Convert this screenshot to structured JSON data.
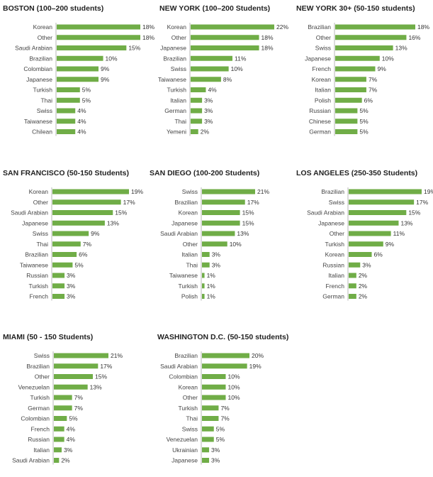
{
  "colors": {
    "bar": "#70ad47",
    "axis": "#a6a6a6",
    "text": "#444444"
  },
  "chart_data": [
    {
      "type": "bar",
      "orientation": "horizontal",
      "title": "BOSTON (100–200 students)",
      "categories": [
        "Korean",
        "Other",
        "Saudi Arabian",
        "Brazilian",
        "Colombian",
        "Japanese",
        "Turkish",
        "Thai",
        "Swiss",
        "Taiwanese",
        "Chilean"
      ],
      "values": [
        18,
        18,
        15,
        10,
        9,
        9,
        5,
        5,
        4,
        4,
        4
      ],
      "value_labels": [
        "18%",
        "18%",
        "15%",
        "10%",
        "9%",
        "9%",
        "5%",
        "5%",
        "4%",
        "4%",
        "4%"
      ],
      "xlim": [
        0,
        18
      ]
    },
    {
      "type": "bar",
      "orientation": "horizontal",
      "title": "NEW YORK (100–200 Students)",
      "categories": [
        "Korean",
        "Other",
        "Japanese",
        "Brazilian",
        "Swiss",
        "Taiwanese",
        "Turkish",
        "Italian",
        "German",
        "Thai",
        "Yemeni"
      ],
      "values": [
        22,
        18,
        18,
        11,
        10,
        8,
        4,
        3,
        3,
        3,
        2
      ],
      "value_labels": [
        "22%",
        "18%",
        "18%",
        "11%",
        "10%",
        "8%",
        "4%",
        "3%",
        "3%",
        "3%",
        "2%"
      ],
      "xlim": [
        0,
        22
      ]
    },
    {
      "type": "bar",
      "orientation": "horizontal",
      "title": "NEW YORK 30+ (50-150 students)",
      "categories": [
        "Brazilian",
        "Other",
        "Swiss",
        "Japanese",
        "French",
        "Korean",
        "Italian",
        "Polish",
        "Russian",
        "Chinese",
        "German"
      ],
      "values": [
        18,
        16,
        13,
        10,
        9,
        7,
        7,
        6,
        5,
        5,
        5
      ],
      "value_labels": [
        "18%",
        "16%",
        "13%",
        "10%",
        "9%",
        "7%",
        "7%",
        "6%",
        "5%",
        "5%",
        "5%"
      ],
      "xlim": [
        0,
        18
      ]
    },
    {
      "type": "bar",
      "orientation": "horizontal",
      "title": "SAN FRANCISCO (50-150 Students)",
      "categories": [
        "Korean",
        "Other",
        "Saudi Arabian",
        "Japanese",
        "Swiss",
        "Thai",
        "Brazilian",
        "Taiwanese",
        "Russian",
        "Turkish",
        "French"
      ],
      "values": [
        19,
        17,
        15,
        13,
        9,
        7,
        6,
        5,
        3,
        3,
        3
      ],
      "value_labels": [
        "19%",
        "17%",
        "15%",
        "13%",
        "9%",
        "7%",
        "6%",
        "5%",
        "3%",
        "3%",
        "3%"
      ],
      "xlim": [
        0,
        19
      ]
    },
    {
      "type": "bar",
      "orientation": "horizontal",
      "title": "SAN DIEGO (100-200 Students)",
      "categories": [
        "Swiss",
        "Brazilian",
        "Korean",
        "Japanese",
        "Saudi Arabian",
        "Other",
        "Italian",
        "Thai",
        "Taiwanese",
        "Turkish",
        "Polish"
      ],
      "values": [
        21,
        17,
        15,
        15,
        13,
        10,
        3,
        3,
        1,
        1,
        1
      ],
      "value_labels": [
        "21%",
        "17%",
        "15%",
        "15%",
        "13%",
        "10%",
        "3%",
        "3%",
        "1%",
        "1%",
        "1%"
      ],
      "xlim": [
        0,
        21
      ]
    },
    {
      "type": "bar",
      "orientation": "horizontal",
      "title": "LOS ANGELES (250-350 Students)",
      "categories": [
        "Brazilian",
        "Swiss",
        "Saudi Arabian",
        "Japanese",
        "Other",
        "Turkish",
        "Korean",
        "Russian",
        "Italian",
        "French",
        "German"
      ],
      "values": [
        19,
        17,
        15,
        13,
        11,
        9,
        6,
        3,
        2,
        2,
        2
      ],
      "value_labels": [
        "19%",
        "17%",
        "15%",
        "13%",
        "11%",
        "9%",
        "6%",
        "3%",
        "2%",
        "2%",
        "2%"
      ],
      "xlim": [
        0,
        19
      ]
    },
    {
      "type": "bar",
      "orientation": "horizontal",
      "title": "MIAMI (50 - 150 Students)",
      "categories": [
        "Swiss",
        "Brazilian",
        "Other",
        "Venezuelan",
        "Turkish",
        "German",
        "Colombian",
        "French",
        "Russian",
        "Italian",
        "Saudi Arabian"
      ],
      "values": [
        21,
        17,
        15,
        13,
        7,
        7,
        5,
        4,
        4,
        3,
        2
      ],
      "value_labels": [
        "21%",
        "17%",
        "15%",
        "13%",
        "7%",
        "7%",
        "5%",
        "4%",
        "4%",
        "3%",
        "2%"
      ],
      "xlim": [
        0,
        21
      ]
    },
    {
      "type": "bar",
      "orientation": "horizontal",
      "title": "WASHINGTON D.C. (50-150 students)",
      "categories": [
        "Brazilian",
        "Saudi Arabian",
        "Colombian",
        "Korean",
        "Other",
        "Turkish",
        "Thai",
        "Swiss",
        "Venezuelan",
        "Ukrainian",
        "Japanese"
      ],
      "values": [
        20,
        19,
        10,
        10,
        10,
        7,
        7,
        5,
        5,
        3,
        3
      ],
      "value_labels": [
        "20%",
        "19%",
        "10%",
        "10%",
        "10%",
        "7%",
        "7%",
        "5%",
        "5%",
        "3%",
        "3%"
      ],
      "xlim": [
        0,
        20
      ]
    }
  ]
}
